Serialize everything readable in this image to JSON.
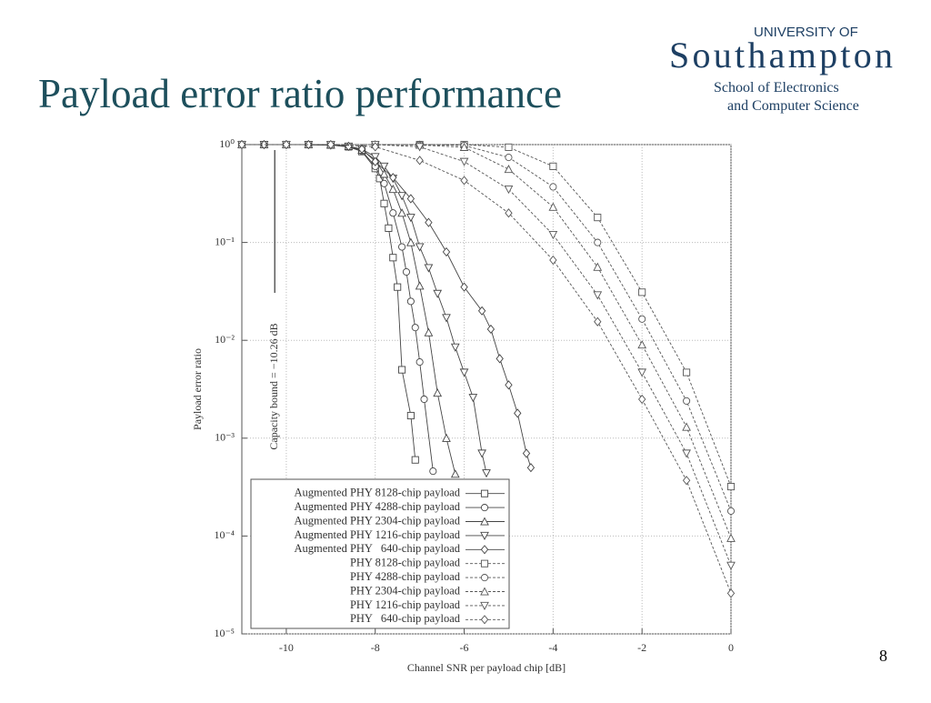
{
  "slide": {
    "title": "Payload error ratio performance",
    "logo_line1": "UNIVERSITY OF",
    "logo_line2": "Southampton",
    "logo_line3": "School of Electronics",
    "logo_line4": "and Computer Science",
    "page_number": "8"
  },
  "chart_data": {
    "type": "line",
    "xlabel": "Channel SNR per payload chip [dB]",
    "ylabel": "Payload error ratio",
    "xlim": [
      -11,
      0
    ],
    "ylim": [
      1e-05,
      1
    ],
    "ylog": true,
    "grid": true,
    "legend": "lower-left",
    "xticks": [
      -10,
      -8,
      -6,
      -4,
      -2,
      0
    ],
    "yticks": [
      {
        "value": 1,
        "label": "10⁰"
      },
      {
        "value": 0.1,
        "label": "10⁻¹"
      },
      {
        "value": 0.01,
        "label": "10⁻²"
      },
      {
        "value": 0.001,
        "label": "10⁻³"
      },
      {
        "value": 0.0001,
        "label": "10⁻⁴"
      },
      {
        "value": 1e-05,
        "label": "10⁻⁵"
      }
    ],
    "capacity_bound": {
      "x": -10.26,
      "label": "Capacity bound = −10.26 dB"
    },
    "series": [
      {
        "name": "Augmented PHY 8128-chip payload",
        "color": "#444444",
        "linestyle": "solid",
        "marker": "square",
        "x": [
          -11,
          -10.5,
          -10,
          -9.5,
          -9,
          -8.6,
          -8.3,
          -8.0,
          -7.9,
          -7.8,
          -7.7,
          -7.6,
          -7.5,
          -7.4,
          -7.2,
          -7.1
        ],
        "values": [
          1,
          1,
          1,
          1,
          0.99,
          0.95,
          0.85,
          0.57,
          0.45,
          0.25,
          0.14,
          0.07,
          0.035,
          0.005,
          0.0017,
          0.0006
        ]
      },
      {
        "name": "Augmented PHY 4288-chip payload",
        "color": "#444444",
        "linestyle": "solid",
        "marker": "circle",
        "x": [
          -11,
          -10.5,
          -10,
          -9.5,
          -9,
          -8.6,
          -8.3,
          -8.0,
          -7.8,
          -7.6,
          -7.4,
          -7.3,
          -7.2,
          -7.1,
          -7.0,
          -6.9,
          -6.7
        ],
        "values": [
          1,
          1,
          1,
          1,
          0.99,
          0.95,
          0.86,
          0.6,
          0.4,
          0.2,
          0.09,
          0.05,
          0.025,
          0.0135,
          0.006,
          0.0025,
          0.00046
        ]
      },
      {
        "name": "Augmented PHY 2304-chip payload",
        "color": "#444444",
        "linestyle": "solid",
        "marker": "triangle",
        "x": [
          -11,
          -10.5,
          -10,
          -9.5,
          -9,
          -8.6,
          -8.3,
          -8.0,
          -7.8,
          -7.6,
          -7.4,
          -7.2,
          -7.0,
          -6.8,
          -6.6,
          -6.4,
          -6.2
        ],
        "values": [
          1,
          1,
          1,
          1,
          0.99,
          0.96,
          0.88,
          0.7,
          0.5,
          0.35,
          0.2,
          0.1,
          0.036,
          0.012,
          0.0029,
          0.001,
          0.00043
        ]
      },
      {
        "name": "Augmented PHY 1216-chip payload",
        "color": "#444444",
        "linestyle": "solid",
        "marker": "triangle-down",
        "x": [
          -11,
          -10.5,
          -10,
          -9.5,
          -9,
          -8.6,
          -8.3,
          -8.0,
          -7.8,
          -7.6,
          -7.4,
          -7.2,
          -7.0,
          -6.8,
          -6.6,
          -6.4,
          -6.2,
          -6.0,
          -5.8,
          -5.6,
          -5.5
        ],
        "values": [
          1,
          1,
          1,
          1,
          0.99,
          0.96,
          0.9,
          0.75,
          0.6,
          0.45,
          0.3,
          0.18,
          0.09,
          0.055,
          0.03,
          0.017,
          0.0085,
          0.0047,
          0.0026,
          0.0007,
          0.00044
        ]
      },
      {
        "name": "Augmented PHY   640-chip payload",
        "color": "#444444",
        "linestyle": "solid",
        "marker": "diamond",
        "x": [
          -11,
          -10.5,
          -10,
          -9.5,
          -9,
          -8.6,
          -8.3,
          -8.0,
          -7.6,
          -7.2,
          -6.8,
          -6.4,
          -6.0,
          -5.6,
          -5.4,
          -5.2,
          -5.0,
          -4.8,
          -4.6,
          -4.5
        ],
        "values": [
          1,
          1,
          1,
          1,
          0.99,
          0.96,
          0.9,
          0.67,
          0.46,
          0.28,
          0.16,
          0.08,
          0.035,
          0.02,
          0.013,
          0.0065,
          0.0035,
          0.0018,
          0.0007,
          0.0005
        ]
      },
      {
        "name": "PHY 8128-chip payload",
        "color": "#555555",
        "linestyle": "dashed",
        "marker": "square",
        "x": [
          -11,
          -10,
          -9,
          -8,
          -7,
          -6,
          -5,
          -4,
          -3,
          -2,
          -1,
          0
        ],
        "values": [
          1,
          1,
          1,
          1,
          1,
          1,
          0.94,
          0.6,
          0.18,
          0.031,
          0.0047,
          0.00032
        ]
      },
      {
        "name": "PHY 4288-chip payload",
        "color": "#555555",
        "linestyle": "dashed",
        "marker": "circle",
        "x": [
          -11,
          -10,
          -9,
          -8,
          -7,
          -6,
          -5,
          -4,
          -3,
          -2,
          -1,
          0
        ],
        "values": [
          1,
          1,
          1,
          1,
          1,
          0.98,
          0.74,
          0.37,
          0.1,
          0.0165,
          0.0024,
          0.00018
        ]
      },
      {
        "name": "PHY 2304-chip payload",
        "color": "#555555",
        "linestyle": "dashed",
        "marker": "triangle",
        "x": [
          -11,
          -10,
          -9,
          -8,
          -7,
          -6,
          -5,
          -4,
          -3,
          -2,
          -1,
          0
        ],
        "values": [
          1,
          1,
          1,
          1,
          0.99,
          0.94,
          0.56,
          0.23,
          0.056,
          0.009,
          0.0013,
          9.5e-05
        ]
      },
      {
        "name": "PHY 1216-chip payload",
        "color": "#555555",
        "linestyle": "dashed",
        "marker": "triangle-down",
        "x": [
          -11,
          -10,
          -9,
          -8,
          -7,
          -6,
          -5,
          -4,
          -3,
          -2,
          -1,
          0
        ],
        "values": [
          1,
          1,
          1,
          1,
          0.95,
          0.67,
          0.35,
          0.12,
          0.029,
          0.0047,
          0.0007,
          5e-05
        ]
      },
      {
        "name": "PHY   640-chip payload",
        "color": "#555555",
        "linestyle": "dashed",
        "marker": "diamond",
        "x": [
          -11,
          -10,
          -9,
          -8,
          -7,
          -6,
          -5,
          -4,
          -3,
          -2,
          -1,
          0
        ],
        "values": [
          1,
          1,
          1,
          0.95,
          0.69,
          0.43,
          0.2,
          0.066,
          0.0155,
          0.0025,
          0.00037,
          2.6e-05
        ]
      }
    ]
  }
}
